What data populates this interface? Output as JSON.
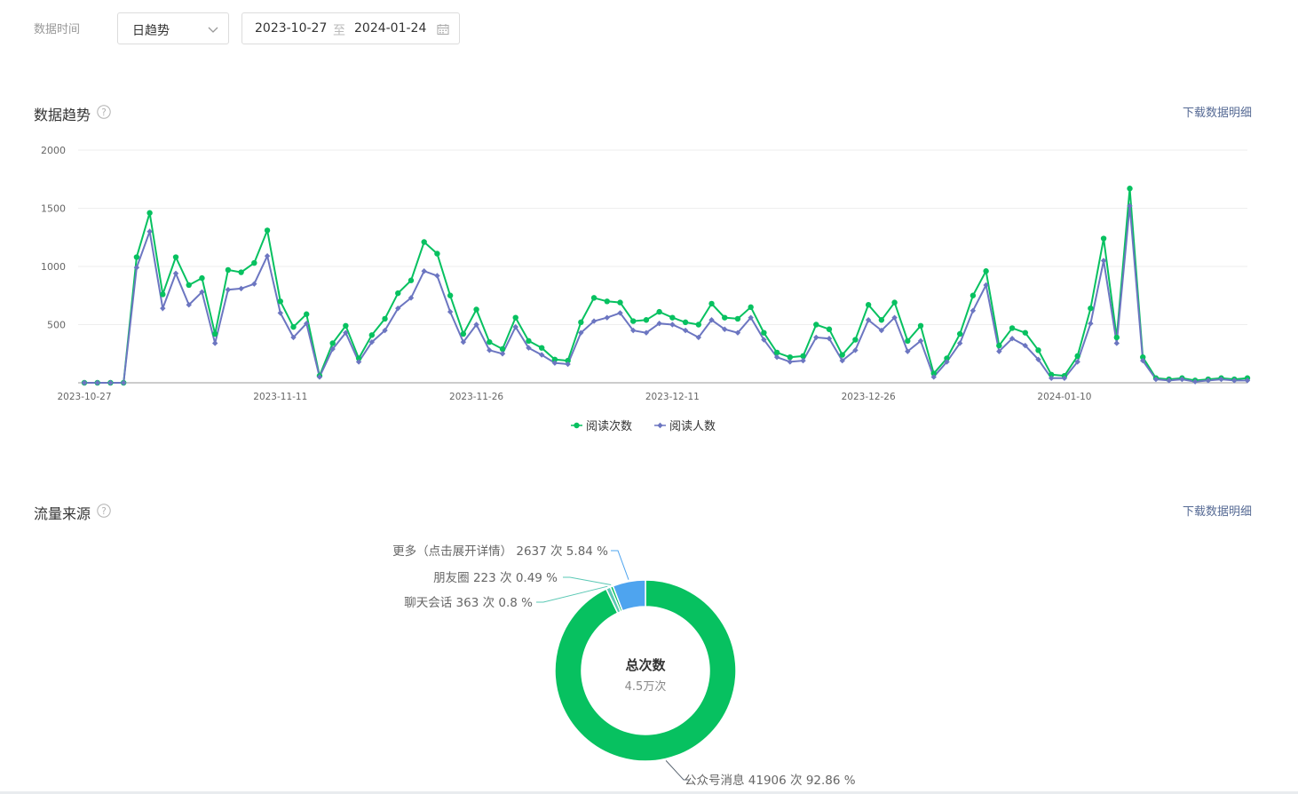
{
  "filter": {
    "label": "数据时间",
    "granularity": "日趋势",
    "date_start": "2023-10-27",
    "date_sep": "至",
    "date_end": "2024-01-24"
  },
  "trend": {
    "title": "数据趋势",
    "download": "下载数据明细"
  },
  "traffic": {
    "title": "流量来源",
    "download": "下载数据明细"
  },
  "colors": {
    "green": "#07c160",
    "blue": "#6c76c1",
    "donut_blue": "#4ea4ef",
    "donut_light": "#5ac8b4"
  },
  "chart_data": [
    {
      "type": "line",
      "x_labels": [
        "2023-10-27",
        "2023-11-11",
        "2023-11-26",
        "2023-12-11",
        "2023-12-26",
        "2024-01-10"
      ],
      "ylim": [
        0,
        2000
      ],
      "yticks": [
        2000,
        1500,
        1000,
        500
      ],
      "grid": true,
      "legend_position": "bottom-center",
      "series": [
        {
          "name": "阅读次数",
          "color": "#07c160",
          "marker": "circle",
          "values": [
            0,
            0,
            0,
            0,
            1080,
            1460,
            760,
            1080,
            840,
            900,
            420,
            970,
            950,
            1030,
            1310,
            700,
            480,
            590,
            60,
            340,
            490,
            210,
            410,
            550,
            770,
            880,
            1210,
            1110,
            750,
            420,
            630,
            350,
            290,
            560,
            360,
            300,
            200,
            190,
            520,
            730,
            700,
            690,
            530,
            540,
            610,
            560,
            520,
            500,
            680,
            560,
            550,
            650,
            430,
            260,
            220,
            230,
            500,
            460,
            240,
            370,
            670,
            540,
            690,
            360,
            490,
            80,
            210,
            420,
            750,
            960,
            320,
            470,
            430,
            280,
            70,
            60,
            230,
            640,
            1240,
            390,
            1670,
            220,
            40,
            30,
            40,
            20,
            30,
            40,
            30,
            40
          ]
        },
        {
          "name": "阅读人数",
          "color": "#6c76c1",
          "marker": "diamond",
          "values": [
            0,
            0,
            0,
            0,
            990,
            1300,
            640,
            940,
            670,
            780,
            340,
            800,
            810,
            850,
            1090,
            600,
            390,
            510,
            50,
            290,
            430,
            180,
            350,
            450,
            640,
            730,
            960,
            920,
            610,
            350,
            500,
            280,
            250,
            480,
            300,
            240,
            170,
            160,
            430,
            530,
            560,
            600,
            450,
            430,
            510,
            500,
            450,
            390,
            540,
            460,
            430,
            560,
            370,
            220,
            180,
            190,
            390,
            380,
            190,
            280,
            540,
            450,
            560,
            270,
            360,
            50,
            180,
            340,
            620,
            840,
            270,
            380,
            320,
            200,
            40,
            40,
            180,
            510,
            1050,
            340,
            1520,
            190,
            30,
            20,
            30,
            10,
            20,
            30,
            20,
            20
          ]
        }
      ]
    },
    {
      "type": "pie",
      "center_title": "总次数",
      "center_value": "4.5万次",
      "slices": [
        {
          "name": "公众号消息",
          "value": 41906,
          "percent": 92.86,
          "label": "公众号消息 41906 次 92.86 %",
          "color": "#07c160"
        },
        {
          "name": "聊天会话",
          "value": 363,
          "percent": 0.8,
          "label": "聊天会话 363 次 0.8 %",
          "color": "#5ac8b4"
        },
        {
          "name": "朋友圈",
          "value": 223,
          "percent": 0.49,
          "label": "朋友圈 223 次 0.49 %",
          "color": "#07c160"
        },
        {
          "name": "更多（点击展开详情）",
          "value": 2637,
          "percent": 5.84,
          "label": "更多（点击展开详情） 2637 次 5.84 %",
          "color": "#4ea4ef"
        }
      ]
    }
  ]
}
